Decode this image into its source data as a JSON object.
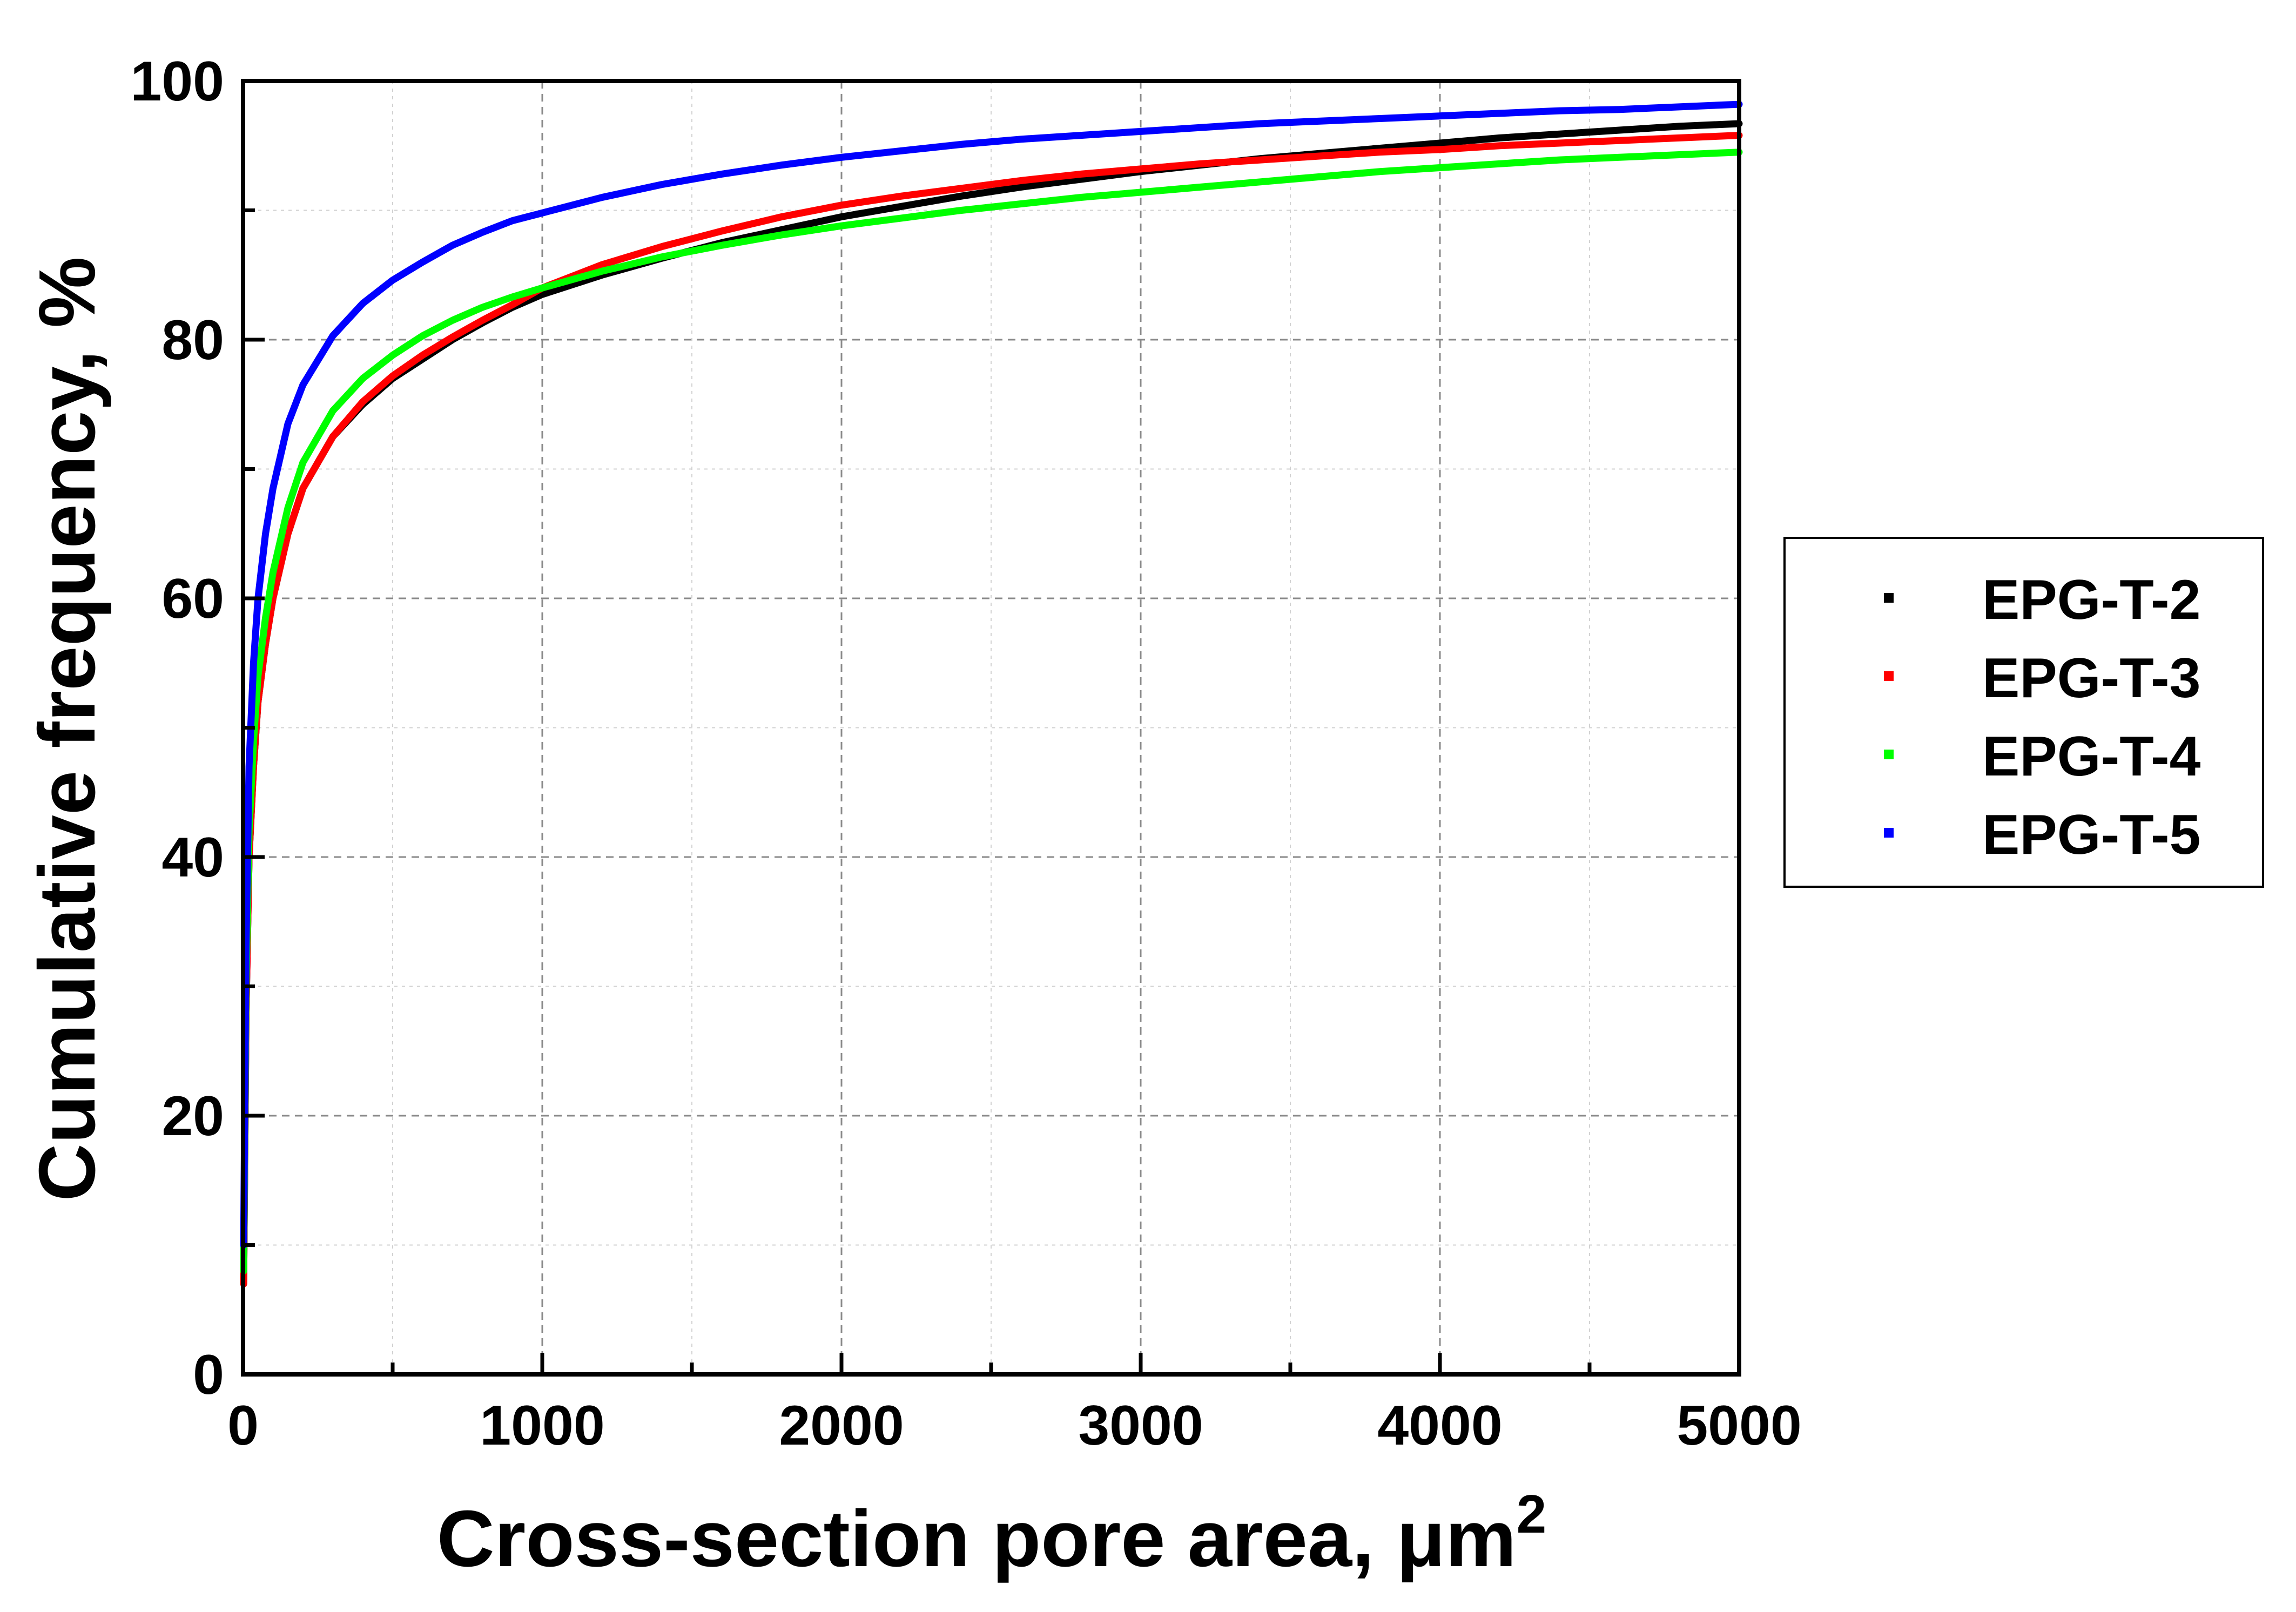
{
  "chart_data": {
    "type": "line",
    "title": "",
    "xlabel": "Cross-section pore area, μm",
    "xlabel_superscript": "2",
    "ylabel": "Cumulative frequency, %",
    "xlim": [
      0,
      5000
    ],
    "ylim": [
      0,
      100
    ],
    "xticks": [
      0,
      1000,
      2000,
      3000,
      4000,
      5000
    ],
    "yticks": [
      0,
      20,
      40,
      60,
      80,
      100
    ],
    "x_minor_step": 500,
    "y_minor_step": 10,
    "grid": true,
    "legend_position": "right",
    "series": [
      {
        "name": "EPG-T-2",
        "color": "#000000",
        "x": [
          2,
          10,
          20,
          35,
          50,
          75,
          100,
          150,
          200,
          300,
          400,
          500,
          600,
          700,
          800,
          900,
          1000,
          1200,
          1400,
          1600,
          1800,
          2000,
          2200,
          2400,
          2600,
          2800,
          3000,
          3200,
          3400,
          3600,
          3800,
          4000,
          4200,
          4400,
          4600,
          4800,
          5000
        ],
        "y": [
          7,
          28,
          40,
          47,
          52,
          56.5,
          60,
          65,
          68.5,
          72.5,
          75,
          77,
          78.5,
          80,
          81.3,
          82.5,
          83.5,
          85,
          86.3,
          87.5,
          88.5,
          89.5,
          90.3,
          91.1,
          91.8,
          92.4,
          93,
          93.5,
          94,
          94.4,
          94.8,
          95.2,
          95.6,
          95.9,
          96.2,
          96.5,
          96.7
        ]
      },
      {
        "name": "EPG-T-3",
        "color": "#ff0000",
        "x": [
          2,
          10,
          20,
          35,
          50,
          75,
          100,
          150,
          200,
          300,
          400,
          500,
          600,
          700,
          800,
          900,
          1000,
          1200,
          1400,
          1600,
          1800,
          2000,
          2200,
          2400,
          2600,
          2800,
          3000,
          3200,
          3400,
          3600,
          3800,
          4000,
          4200,
          4400,
          4600,
          4800,
          5000
        ],
        "y": [
          7,
          28,
          40,
          47,
          52,
          56.5,
          60,
          65,
          68.5,
          72.5,
          75.2,
          77.2,
          78.8,
          80.2,
          81.5,
          82.7,
          84,
          85.8,
          87.2,
          88.4,
          89.5,
          90.4,
          91.1,
          91.7,
          92.3,
          92.8,
          93.2,
          93.6,
          93.9,
          94.2,
          94.5,
          94.7,
          95,
          95.2,
          95.4,
          95.6,
          95.8
        ]
      },
      {
        "name": "EPG-T-4",
        "color": "#00ff00",
        "x": [
          2,
          10,
          20,
          35,
          50,
          75,
          100,
          150,
          200,
          300,
          400,
          500,
          600,
          700,
          800,
          900,
          1000,
          1200,
          1400,
          1600,
          1800,
          2000,
          2200,
          2400,
          2600,
          2800,
          3000,
          3200,
          3400,
          3600,
          3800,
          4000,
          4200,
          4400,
          4600,
          4800,
          5000
        ],
        "y": [
          8,
          30,
          42,
          49,
          54,
          58.5,
          62,
          67,
          70.5,
          74.5,
          77,
          78.8,
          80.3,
          81.5,
          82.5,
          83.3,
          84,
          85.3,
          86.4,
          87.3,
          88.1,
          88.8,
          89.4,
          90,
          90.5,
          91,
          91.4,
          91.8,
          92.2,
          92.6,
          93,
          93.3,
          93.6,
          93.9,
          94.1,
          94.3,
          94.5
        ]
      },
      {
        "name": "EPG-T-5",
        "color": "#0000ff",
        "x": [
          2,
          10,
          20,
          35,
          50,
          75,
          100,
          150,
          200,
          300,
          400,
          500,
          600,
          700,
          800,
          900,
          1000,
          1200,
          1400,
          1600,
          1800,
          2000,
          2200,
          2400,
          2600,
          2800,
          3000,
          3200,
          3400,
          3600,
          3800,
          4000,
          4200,
          4400,
          4600,
          4800,
          5000
        ],
        "y": [
          10,
          33,
          47,
          55,
          60,
          65,
          68.5,
          73.5,
          76.5,
          80.3,
          82.8,
          84.6,
          86,
          87.3,
          88.3,
          89.2,
          89.8,
          91,
          92,
          92.8,
          93.5,
          94.1,
          94.6,
          95.1,
          95.5,
          95.8,
          96.1,
          96.4,
          96.7,
          96.9,
          97.1,
          97.3,
          97.5,
          97.7,
          97.8,
          98,
          98.2
        ]
      }
    ]
  }
}
